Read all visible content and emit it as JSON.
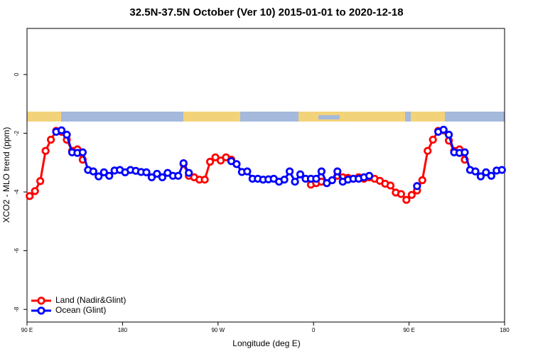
{
  "chart_data": {
    "type": "line",
    "title": "32.5N-37.5N October (Ver 10)   2015-01-01 to 2020-12-18",
    "xlabel": "Longitude (deg E)",
    "ylabel": "XCO2 - MLO trend (ppm)",
    "x": [
      92.5,
      97.5,
      102.5,
      107.5,
      112.5,
      117.5,
      122.5,
      127.5,
      132.5,
      137.5,
      142.5,
      147.5,
      152.5,
      157.5,
      162.5,
      167.5,
      172.5,
      177.5,
      182.5,
      187.5,
      192.5,
      197.5,
      202.5,
      207.5,
      212.5,
      217.5,
      222.5,
      227.5,
      232.5,
      237.5,
      242.5,
      247.5,
      252.5,
      257.5,
      262.5,
      267.5,
      272.5,
      277.5,
      282.5,
      287.5,
      292.5,
      297.5,
      302.5,
      307.5,
      312.5,
      317.5,
      322.5,
      327.5,
      332.5,
      337.5,
      342.5,
      347.5,
      352.5,
      357.5,
      362.5,
      367.5,
      372.5,
      377.5,
      382.5,
      387.5,
      392.5,
      397.5,
      402.5,
      407.5,
      412.5,
      417.5,
      422.5,
      427.5,
      432.5,
      437.5,
      442.5,
      447.5,
      452.5,
      457.5,
      462.5,
      467.5,
      472.5,
      477.5,
      482.5,
      487.5,
      492.5,
      497.5,
      502.5,
      507.5,
      512.5,
      517.5,
      522.5,
      527.5,
      532.5,
      537.5
    ],
    "series": [
      {
        "name": "Land (Nadir&Glint)",
        "color": "#ff0000",
        "values": [
          -4.14,
          -3.97,
          -3.63,
          -2.6,
          -2.22,
          -1.92,
          -1.95,
          -2.22,
          -2.6,
          -2.55,
          -2.9,
          null,
          null,
          null,
          null,
          null,
          null,
          null,
          null,
          null,
          null,
          null,
          null,
          null,
          null,
          null,
          null,
          null,
          null,
          -3.05,
          -3.45,
          -3.5,
          -3.58,
          -3.58,
          -2.97,
          -2.82,
          -2.93,
          -2.82,
          -2.9,
          null,
          null,
          null,
          null,
          null,
          null,
          null,
          null,
          null,
          null,
          null,
          null,
          null,
          null,
          -3.75,
          -3.7,
          -3.65,
          null,
          null,
          -3.45,
          -3.5,
          -3.52,
          -3.55,
          -3.5,
          -3.55,
          -3.5,
          -3.55,
          -3.62,
          -3.72,
          -3.78,
          -4.02,
          -4.07,
          -4.27,
          -4.1,
          -3.95,
          -3.6,
          -2.6,
          -2.22,
          -1.92,
          -1.9,
          -2.25,
          -2.6,
          -2.55,
          -2.9,
          null,
          null,
          null,
          null,
          null,
          null,
          null
        ]
      },
      {
        "name": "Ocean (Glint)",
        "color": "#0000ff",
        "values": [
          null,
          null,
          null,
          null,
          null,
          -1.95,
          -1.9,
          -2.05,
          -2.65,
          -2.67,
          -2.65,
          -3.25,
          -3.3,
          -3.47,
          -3.33,
          -3.45,
          -3.27,
          -3.25,
          -3.33,
          -3.25,
          -3.28,
          -3.32,
          -3.33,
          -3.5,
          -3.38,
          -3.5,
          -3.35,
          -3.45,
          -3.45,
          -3.02,
          -3.35,
          null,
          null,
          null,
          null,
          null,
          null,
          null,
          -2.95,
          -3.05,
          -3.32,
          -3.3,
          -3.55,
          -3.55,
          -3.58,
          -3.57,
          -3.55,
          -3.65,
          -3.58,
          -3.3,
          -3.65,
          -3.4,
          -3.55,
          -3.55,
          -3.55,
          -3.3,
          -3.7,
          -3.6,
          -3.3,
          -3.65,
          -3.58,
          -3.55,
          -3.55,
          -3.5,
          -3.45,
          null,
          null,
          null,
          null,
          null,
          null,
          null,
          null,
          -3.8,
          null,
          null,
          null,
          -1.95,
          -1.88,
          -2.05,
          -2.65,
          -2.67,
          -2.65,
          -3.25,
          -3.3,
          -3.47,
          -3.33,
          -3.45,
          -3.27,
          -3.25
        ]
      }
    ],
    "xlim": [
      90,
      540
    ],
    "xticks": [
      {
        "value": 90,
        "label": "90 E"
      },
      {
        "value": 180,
        "label": "180"
      },
      {
        "value": 270,
        "label": "90 W"
      },
      {
        "value": 360,
        "label": "0"
      },
      {
        "value": 450,
        "label": "90 E"
      },
      {
        "value": 540,
        "label": "180"
      }
    ],
    "ylim": [
      -8.43,
      1.57
    ],
    "yticks": [
      0,
      -2,
      -4,
      -6,
      -8
    ],
    "legend": "bottom-left"
  }
}
